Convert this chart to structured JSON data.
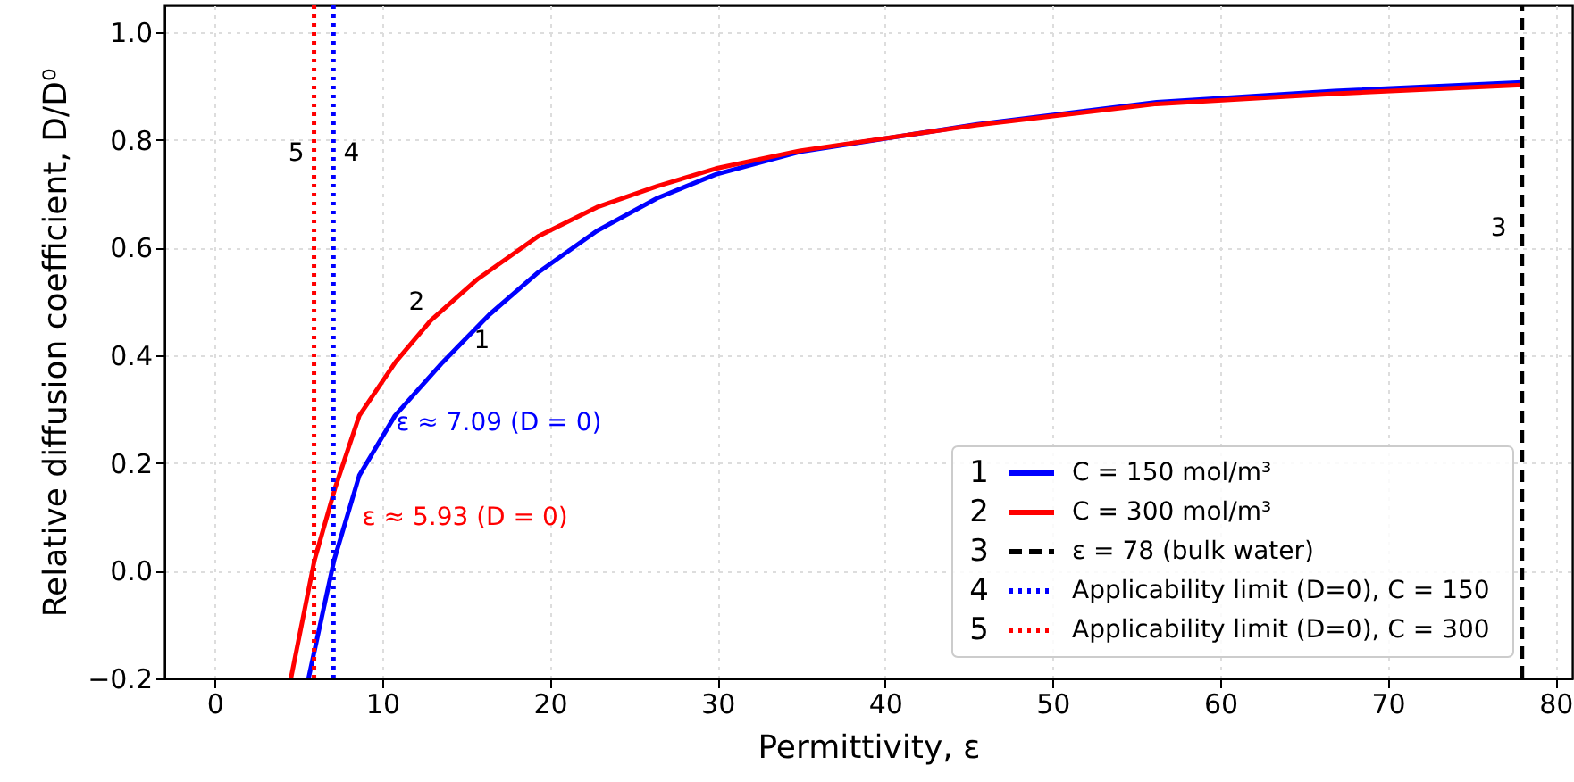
{
  "chart_data": {
    "type": "line",
    "xlabel": "Permittivity, ε",
    "ylabel": "Relative diffusion coefficient, D/D⁰",
    "xlim": [
      -3,
      81
    ],
    "ylim": [
      -0.2,
      1.05
    ],
    "xticks": [
      0,
      10,
      20,
      30,
      40,
      50,
      60,
      70,
      80
    ],
    "yticks": [
      {
        "value": -0.2,
        "label": "−0.2"
      },
      {
        "value": 0,
        "label": "0.0"
      },
      {
        "value": 0.2,
        "label": "0.2"
      },
      {
        "value": 0.4,
        "label": "0.4"
      },
      {
        "value": 0.6,
        "label": "0.6"
      },
      {
        "value": 0.8,
        "label": "0.8"
      },
      {
        "value": 1.0,
        "label": "1.0"
      }
    ],
    "grid": true,
    "legend": "bottom right",
    "line_style": "solid",
    "marker": "none",
    "series": [
      {
        "name": "C = 150 mol/m³",
        "color": "#0000ff",
        "x": [
          5.6,
          7.13,
          8.63,
          10.76,
          13.6,
          16.4,
          19.3,
          22.8,
          26.4,
          29.9,
          34.9,
          45.5,
          56.2,
          66.8,
          78
        ],
        "values": [
          -0.2,
          0.02,
          0.177,
          0.288,
          0.387,
          0.476,
          0.554,
          0.631,
          0.692,
          0.736,
          0.778,
          0.829,
          0.87,
          0.891,
          0.907
        ]
      },
      {
        "name": "C = 300 mol/m³",
        "color": "#ff0000",
        "x": [
          4.55,
          5.96,
          7.2,
          8.63,
          10.8,
          12.9,
          15.7,
          19.3,
          22.8,
          26.4,
          29.9,
          34.9,
          45.5,
          56.2,
          66.8,
          78
        ],
        "values": [
          -0.2,
          0.02,
          0.155,
          0.288,
          0.388,
          0.465,
          0.542,
          0.621,
          0.675,
          0.714,
          0.747,
          0.78,
          0.828,
          0.867,
          0.886,
          0.902
        ]
      },
      {
        "name": "ε = 78 (bulk water)",
        "color": "#000000",
        "line_style": "dashed",
        "x": [
          78,
          78
        ],
        "values": [
          -0.2,
          1.05
        ]
      },
      {
        "name": "Applicability limit (D=0), C = 150",
        "color": "#0000ff",
        "line_style": "dotted",
        "x": [
          7.09,
          7.09
        ],
        "values": [
          -0.2,
          1.05
        ]
      },
      {
        "name": "Applicability limit (D=0), C = 300",
        "color": "#ff0000",
        "line_style": "dotted",
        "x": [
          5.93,
          5.93
        ],
        "values": [
          -0.2,
          1.05
        ]
      }
    ],
    "annotations": [
      "1",
      "2",
      "3",
      "4",
      "5",
      "ε ≈ 7.09 (D = 0)",
      "ε ≈ 5.93 (D = 0)"
    ]
  }
}
